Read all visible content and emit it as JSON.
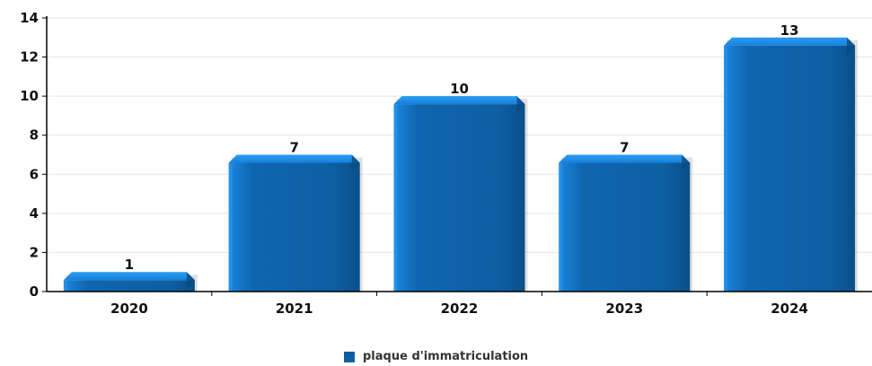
{
  "chart_data": {
    "type": "bar",
    "categories": [
      "2020",
      "2021",
      "2022",
      "2023",
      "2024"
    ],
    "series": [
      {
        "name": "plaque d'immatriculation",
        "values": [
          1,
          7,
          10,
          7,
          13
        ]
      }
    ],
    "y_ticks": [
      "0",
      "2",
      "4",
      "6",
      "8",
      "10",
      "12",
      "14"
    ],
    "ylim": [
      0,
      14
    ],
    "grid": true,
    "legend": "bottom-center",
    "colors": {
      "bar": "#0d5fa3",
      "bar_top": "#1e8ee8",
      "grid": "#e6e6e6",
      "axis": "#000000"
    }
  }
}
